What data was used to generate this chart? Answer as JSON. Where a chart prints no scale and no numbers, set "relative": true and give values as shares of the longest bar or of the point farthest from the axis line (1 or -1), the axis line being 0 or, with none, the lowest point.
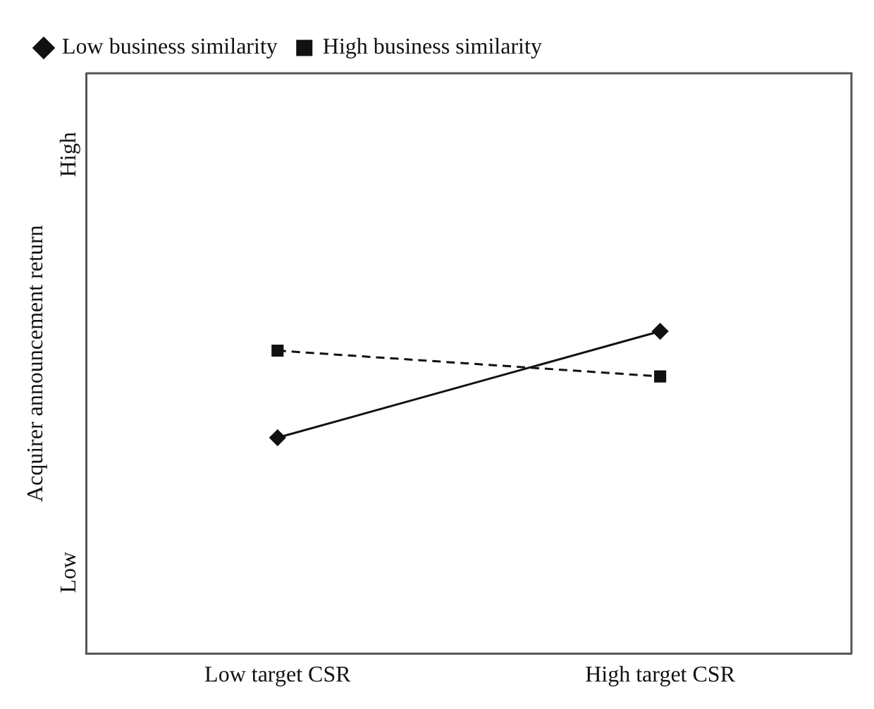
{
  "chart_data": {
    "type": "line",
    "relative": true,
    "ylabel": "Acquirer announcement return",
    "categories": [
      "Low target CSR",
      "High target CSR"
    ],
    "series": [
      {
        "name": "Low business similarity",
        "color": "#111111",
        "values": [
          0.67,
          1
        ],
        "marker": "diamond",
        "line_style": "solid"
      },
      {
        "name": "High business similarity",
        "color": "#111111",
        "values": [
          0.94,
          0.86
        ],
        "marker": "square",
        "line_style": "dashed"
      }
    ],
    "annotations": [
      "Low",
      "High"
    ],
    "legend": "top left"
  }
}
